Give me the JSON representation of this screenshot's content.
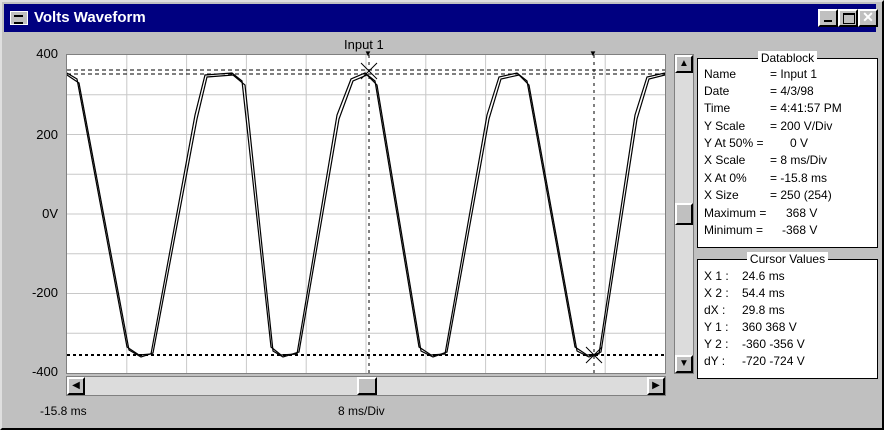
{
  "window": {
    "title": "Volts Waveform"
  },
  "plot": {
    "channel_label": "Input 1",
    "y_ticks": [
      "400",
      "200",
      "0V",
      "-200",
      "-400"
    ],
    "x_left_label": "-15.8 ms",
    "x_scale_label": "8 ms/Div"
  },
  "datablock": {
    "title": "Datablock",
    "rows": [
      {
        "label": "Name",
        "value": "= Input 1"
      },
      {
        "label": "Date",
        "value": "= 4/3/98"
      },
      {
        "label": "Time",
        "value": "= 4:41:57 PM"
      },
      {
        "label": "Y Scale",
        "value": "=  200   V/Div"
      },
      {
        "label": "Y At 50% =",
        "value": "0   V"
      },
      {
        "label": "X Scale",
        "value": "=    8    ms/Div"
      },
      {
        "label": "X At 0%",
        "value": "=  -15.8 ms"
      },
      {
        "label": "X Size",
        "value": "= 250 (254)"
      },
      {
        "label": "Maximum =",
        "value": "368   V"
      },
      {
        "label": "Minimum =",
        "value": "-368   V"
      }
    ]
  },
  "cursor_values": {
    "title": "Cursor Values",
    "rows": [
      {
        "label": "X 1 :",
        "value": "24.6 ms"
      },
      {
        "label": "X 2 :",
        "value": "54.4 ms"
      },
      {
        "label": "dX :",
        "value": "29.8 ms"
      },
      {
        "label": "Y 1 :",
        "value": "360    368 V"
      },
      {
        "label": "Y 2 :",
        "value": "-360   -356 V"
      },
      {
        "label": "dY :",
        "value": "-720   -724 V"
      }
    ]
  }
}
